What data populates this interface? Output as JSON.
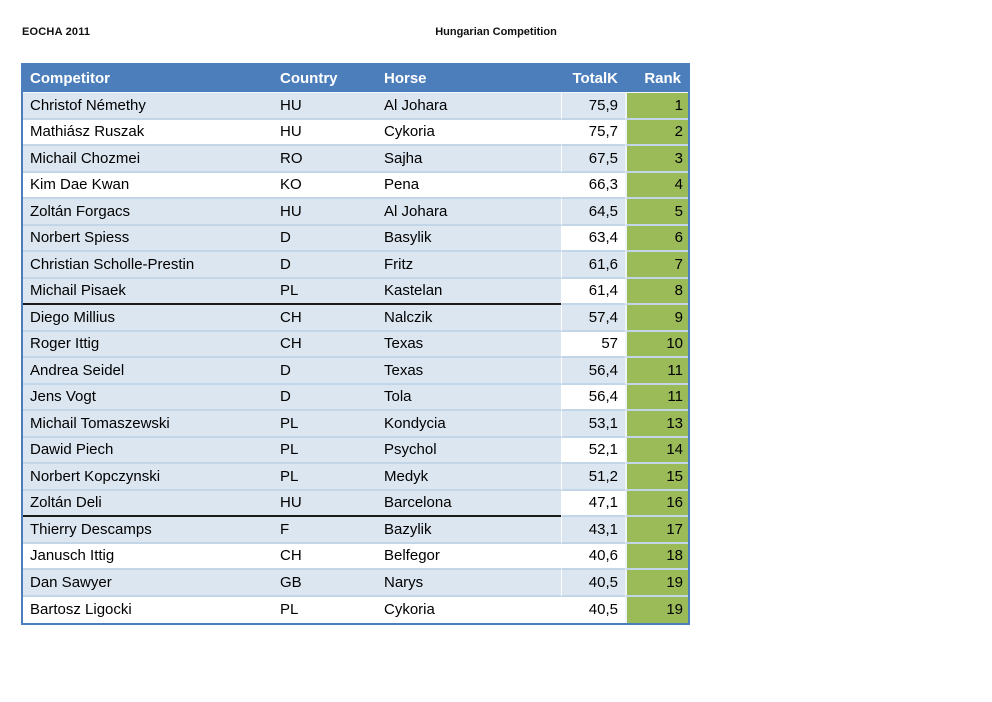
{
  "page": {
    "event_label": "EOCHA 2011",
    "title": "Hungarian Competition"
  },
  "colors": {
    "header_blue": "#4d7ebc",
    "row_light_blue": "#dce6f1",
    "rank_green": "#9bbb59",
    "grid_line": "#c3d6e8",
    "divider_black": "#1b1b1b",
    "outer_border_blue": "#4d7ebc"
  },
  "table": {
    "columns": {
      "competitor": "Competitor",
      "country": "Country",
      "horse": "Horse",
      "totalk": "TotalK",
      "rank": "Rank"
    },
    "rows": [
      {
        "competitor": "Christof Némethy",
        "country": "HU",
        "horse": "Al Johara",
        "totalk": "75,9",
        "rank": "1",
        "shade": "blue",
        "totalk_white": false,
        "divider": false
      },
      {
        "competitor": "Mathiász Ruszak",
        "country": "HU",
        "horse": "Cykoria",
        "totalk": "75,7",
        "rank": "2",
        "shade": "white",
        "totalk_white": false,
        "divider": false
      },
      {
        "competitor": "Michail Chozmei",
        "country": "RO",
        "horse": "Sajha",
        "totalk": "67,5",
        "rank": "3",
        "shade": "blue",
        "totalk_white": false,
        "divider": false
      },
      {
        "competitor": "Kim Dae Kwan",
        "country": "KO",
        "horse": "Pena",
        "totalk": "66,3",
        "rank": "4",
        "shade": "white",
        "totalk_white": false,
        "divider": false
      },
      {
        "competitor": "Zoltán Forgacs",
        "country": "HU",
        "horse": "Al Johara",
        "totalk": "64,5",
        "rank": "5",
        "shade": "blue",
        "totalk_white": false,
        "divider": false
      },
      {
        "competitor": "Norbert Spiess",
        "country": "D",
        "horse": "Basylik",
        "totalk": "63,4",
        "rank": "6",
        "shade": "blue",
        "totalk_white": true,
        "divider": false
      },
      {
        "competitor": "Christian Scholle-Prestin",
        "country": "D",
        "horse": "Fritz",
        "totalk": "61,6",
        "rank": "7",
        "shade": "blue",
        "totalk_white": false,
        "divider": false
      },
      {
        "competitor": "Michail Pisaek",
        "country": "PL",
        "horse": "Kastelan",
        "totalk": "61,4",
        "rank": "8",
        "shade": "blue",
        "totalk_white": true,
        "divider": true
      },
      {
        "competitor": "Diego Millius",
        "country": "CH",
        "horse": "Nalczik",
        "totalk": "57,4",
        "rank": "9",
        "shade": "blue",
        "totalk_white": false,
        "divider": false
      },
      {
        "competitor": "Roger Ittig",
        "country": "CH",
        "horse": "Texas",
        "totalk": "57",
        "rank": "10",
        "shade": "blue",
        "totalk_white": true,
        "divider": false
      },
      {
        "competitor": "Andrea Seidel",
        "country": "D",
        "horse": "Texas",
        "totalk": "56,4",
        "rank": "11",
        "shade": "blue",
        "totalk_white": false,
        "divider": false
      },
      {
        "competitor": "Jens Vogt",
        "country": "D",
        "horse": "Tola",
        "totalk": "56,4",
        "rank": "11",
        "shade": "blue",
        "totalk_white": true,
        "divider": false
      },
      {
        "competitor": "Michail Tomaszewski",
        "country": "PL",
        "horse": "Kondycia",
        "totalk": "53,1",
        "rank": "13",
        "shade": "blue",
        "totalk_white": false,
        "divider": false
      },
      {
        "competitor": "Dawid Piech",
        "country": "PL",
        "horse": "Psychol",
        "totalk": "52,1",
        "rank": "14",
        "shade": "blue",
        "totalk_white": true,
        "divider": false
      },
      {
        "competitor": "Norbert Kopczynski",
        "country": "PL",
        "horse": "Medyk",
        "totalk": "51,2",
        "rank": "15",
        "shade": "blue",
        "totalk_white": false,
        "divider": false
      },
      {
        "competitor": "Zoltán Deli",
        "country": "HU",
        "horse": "Barcelona",
        "totalk": "47,1",
        "rank": "16",
        "shade": "blue",
        "totalk_white": true,
        "divider": true
      },
      {
        "competitor": "Thierry Descamps",
        "country": "F",
        "horse": "Bazylik",
        "totalk": "43,1",
        "rank": "17",
        "shade": "blue",
        "totalk_white": false,
        "divider": false
      },
      {
        "competitor": "Janusch Ittig",
        "country": "CH",
        "horse": "Belfegor",
        "totalk": "40,6",
        "rank": "18",
        "shade": "white",
        "totalk_white": false,
        "divider": false
      },
      {
        "competitor": "Dan Sawyer",
        "country": "GB",
        "horse": "Narys",
        "totalk": "40,5",
        "rank": "19",
        "shade": "blue",
        "totalk_white": false,
        "divider": false
      },
      {
        "competitor": "Bartosz Ligocki",
        "country": "PL",
        "horse": "Cykoria",
        "totalk": "40,5",
        "rank": "19",
        "shade": "white",
        "totalk_white": false,
        "divider": false
      }
    ]
  }
}
